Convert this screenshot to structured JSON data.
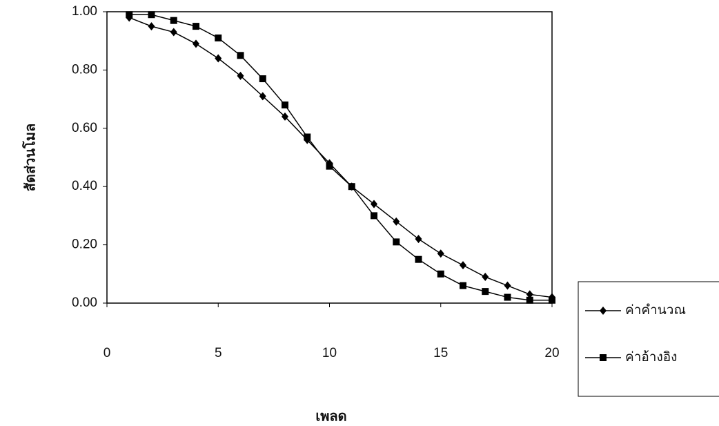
{
  "chart_data": {
    "type": "line",
    "x_label": "เพลด",
    "y_label": "สัดส่วนโมล",
    "x": [
      1,
      2,
      3,
      4,
      5,
      6,
      7,
      8,
      9,
      10,
      11,
      12,
      13,
      14,
      15,
      16,
      17,
      18,
      19,
      20
    ],
    "series": [
      {
        "name": "ค่าคำนวณ",
        "color": "#000000",
        "marker": "diamond",
        "values": [
          0.98,
          0.95,
          0.93,
          0.89,
          0.84,
          0.78,
          0.71,
          0.64,
          0.56,
          0.48,
          0.4,
          0.34,
          0.28,
          0.22,
          0.17,
          0.13,
          0.09,
          0.06,
          0.03,
          0.02
        ]
      },
      {
        "name": "ค่าอ้างอิง",
        "color": "#000000",
        "marker": "square",
        "values": [
          0.99,
          0.99,
          0.97,
          0.95,
          0.91,
          0.85,
          0.77,
          0.68,
          0.57,
          0.47,
          0.4,
          0.3,
          0.21,
          0.15,
          0.1,
          0.06,
          0.04,
          0.02,
          0.01,
          0.01
        ]
      }
    ],
    "xlim": [
      0,
      20
    ],
    "xticks": [
      0,
      5,
      10,
      15,
      20
    ],
    "ylim": [
      0,
      1
    ],
    "yticks": [
      {
        "value": 0,
        "label": "0.00"
      },
      {
        "value": 0.2,
        "label": "0.20"
      },
      {
        "value": 0.4,
        "label": "0.40"
      },
      {
        "value": 0.6,
        "label": "0.60"
      },
      {
        "value": 0.8,
        "label": "0.80"
      },
      {
        "value": 1,
        "label": "1.00"
      }
    ],
    "legend": "right"
  }
}
